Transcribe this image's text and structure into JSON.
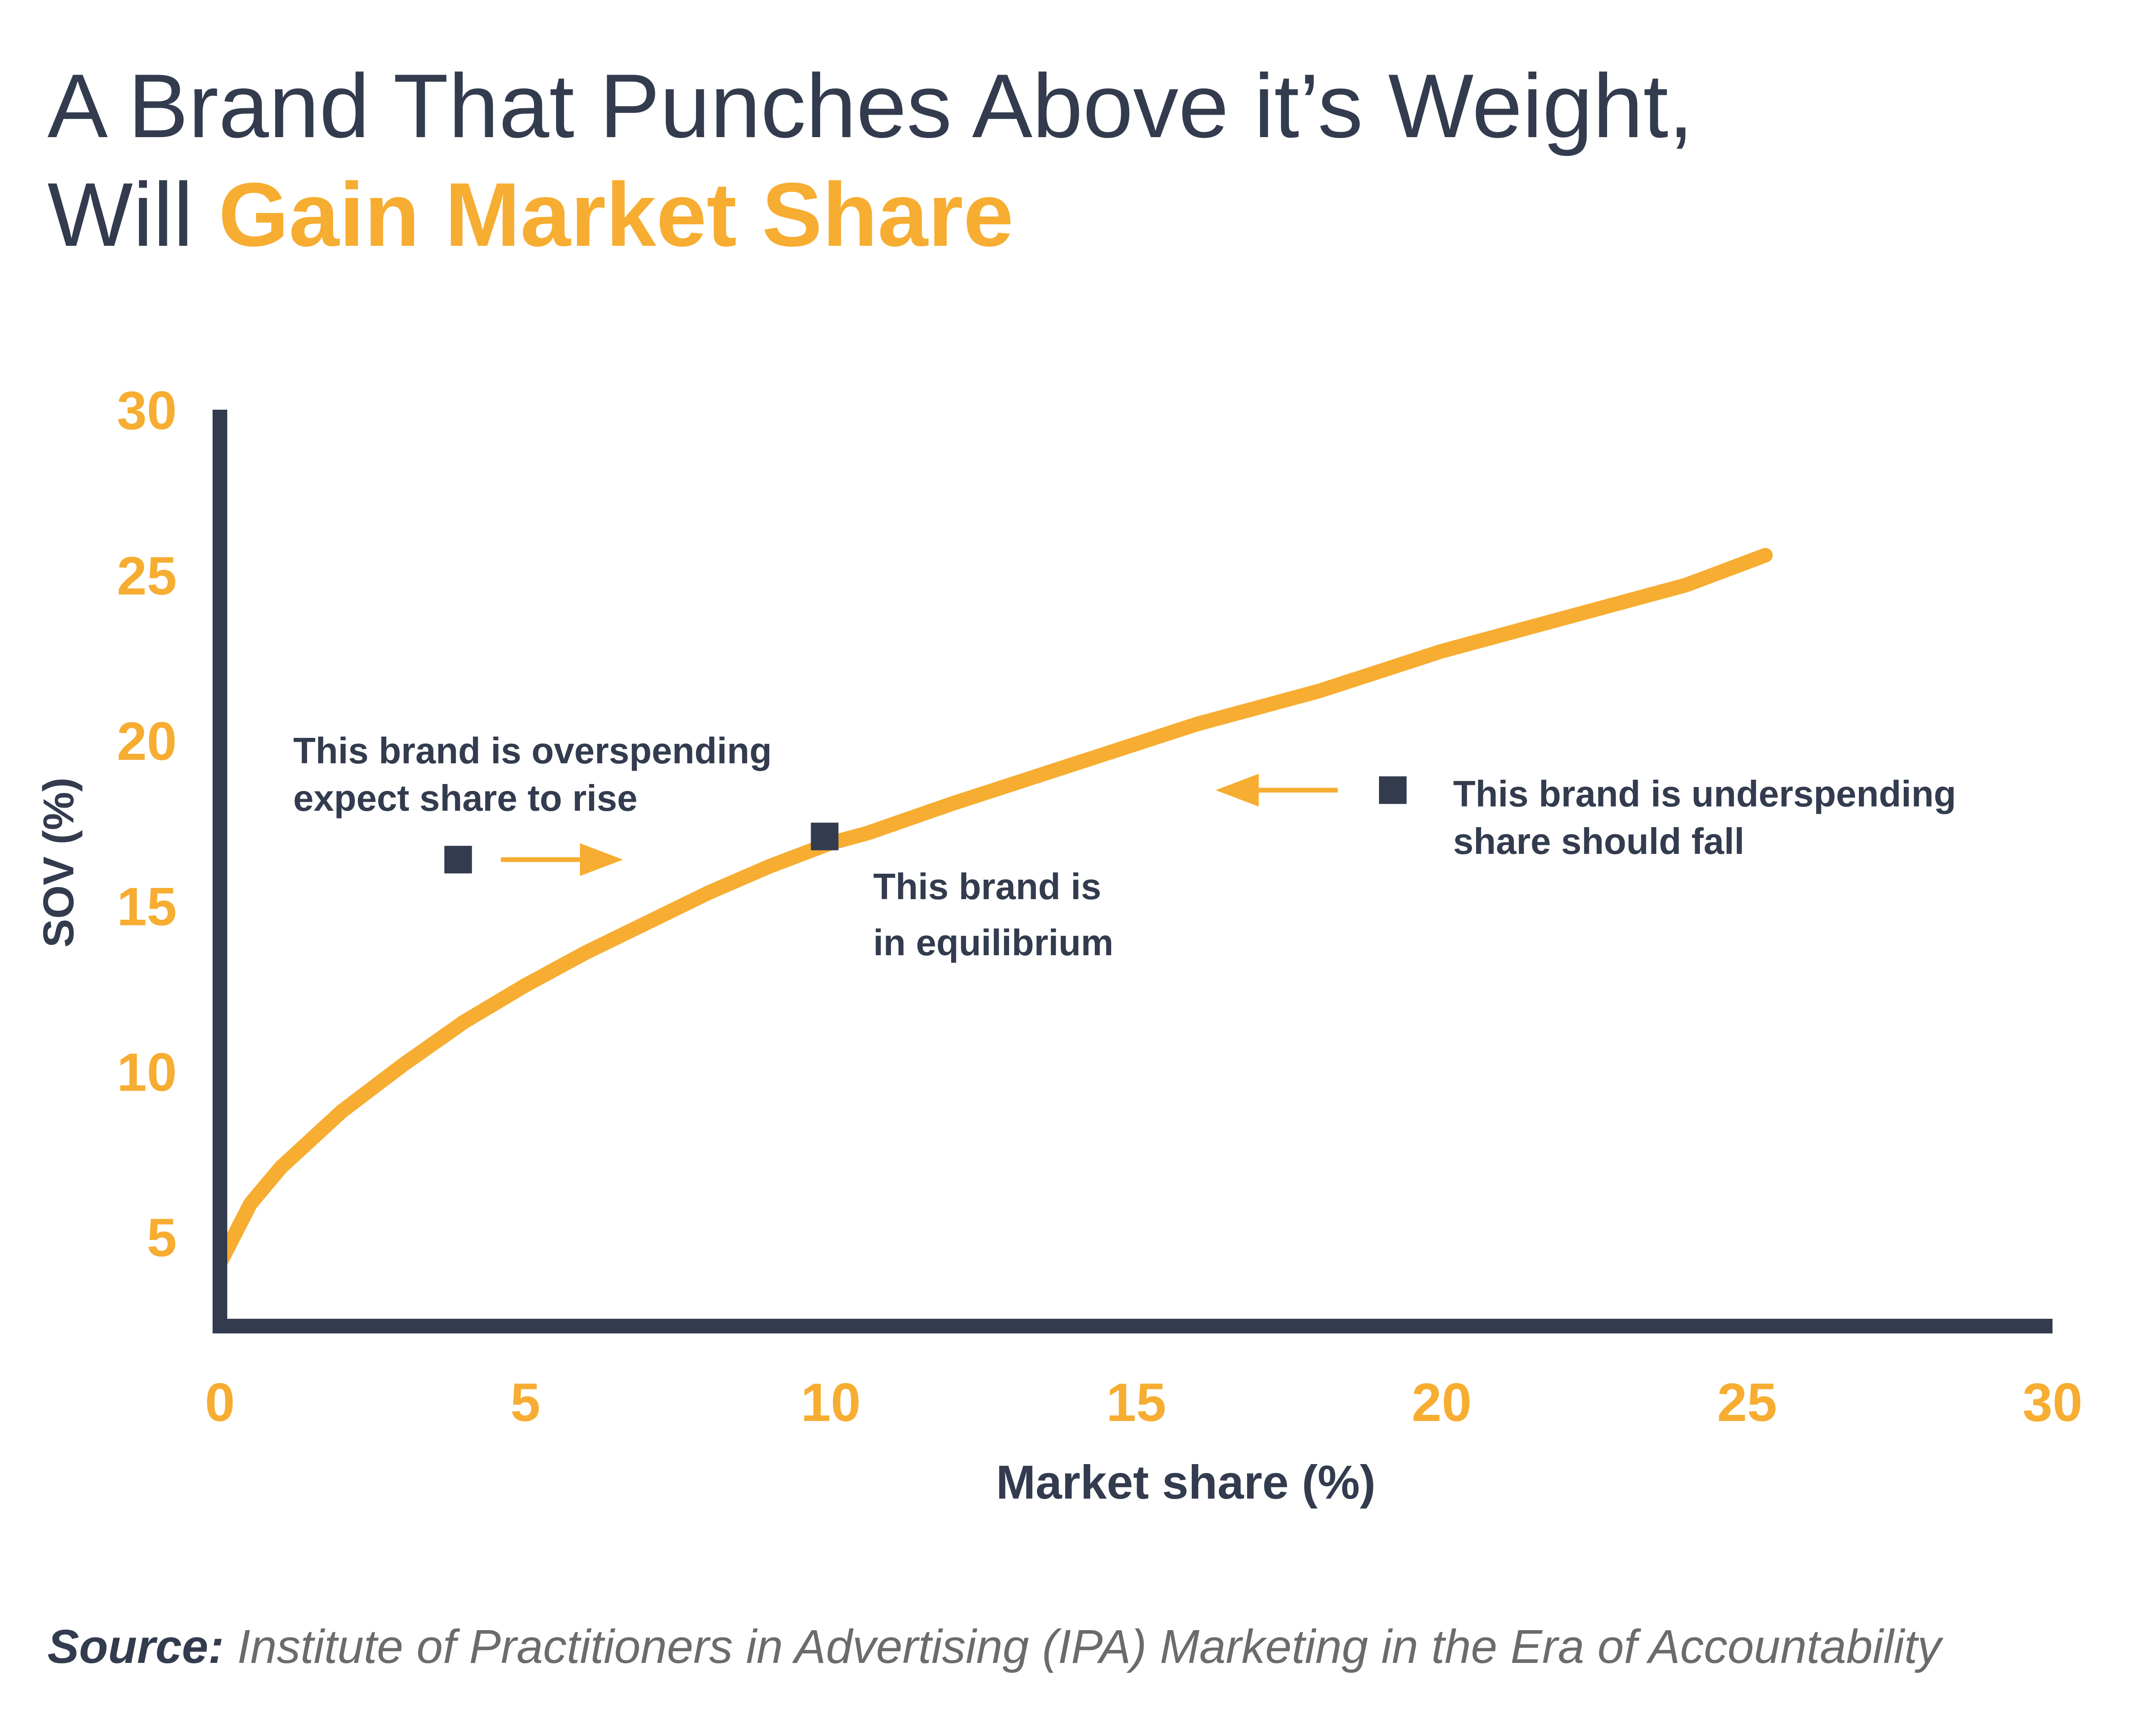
{
  "title": {
    "line1": "A Brand That Punches Above it’s Weight,",
    "line2_prefix": "Will ",
    "line2_highlight": "Gain Market Share"
  },
  "colors": {
    "accent": "#f6ad31",
    "dark": "#333c4e",
    "source_text": "#6b6b6b"
  },
  "chart_data": {
    "type": "line",
    "title": "",
    "xlabel": "Market share (%)",
    "ylabel": "SOV (%)",
    "xlim": [
      0,
      30
    ],
    "ylim": [
      2.3,
      30
    ],
    "x_ticks": [
      "0",
      "5",
      "10",
      "15",
      "20",
      "25",
      "30"
    ],
    "y_ticks": [
      "5",
      "10",
      "15",
      "20",
      "25",
      "30"
    ],
    "grid": false,
    "legend": "none",
    "series": [
      {
        "x": [
          0,
          0.5,
          1,
          2,
          3,
          4,
          5,
          6,
          7,
          8,
          9,
          10,
          10.6,
          12,
          14,
          16,
          18,
          20,
          22,
          24,
          25.3
        ],
        "y": [
          4.2,
          6.0,
          7.1,
          8.8,
          10.2,
          11.5,
          12.6,
          13.6,
          14.5,
          15.4,
          16.2,
          16.9,
          17.2,
          18.1,
          19.3,
          20.5,
          21.5,
          22.7,
          23.7,
          24.7,
          25.6
        ]
      }
    ],
    "points": [
      {
        "x": 3.9,
        "y": 16.4
      },
      {
        "x": 9.9,
        "y": 17.1
      },
      {
        "x": 19.2,
        "y": 18.5
      }
    ],
    "arrows": [
      {
        "from_x": 4.6,
        "to_x": 6.6,
        "y": 16.4
      },
      {
        "from_x": 18.3,
        "to_x": 16.3,
        "y": 18.5
      }
    ],
    "annotations": [
      {
        "lines": [
          "This brand is overspending",
          "expect share to rise"
        ]
      },
      {
        "lines": [
          "This brand is",
          "in equilibrium"
        ]
      },
      {
        "lines": [
          "This brand is underspending",
          "share should fall"
        ]
      }
    ]
  },
  "source": {
    "label": "Source:",
    "text": " Institute of Practitioners in Advertising (IPA) Marketing in the Era of Accountability"
  }
}
